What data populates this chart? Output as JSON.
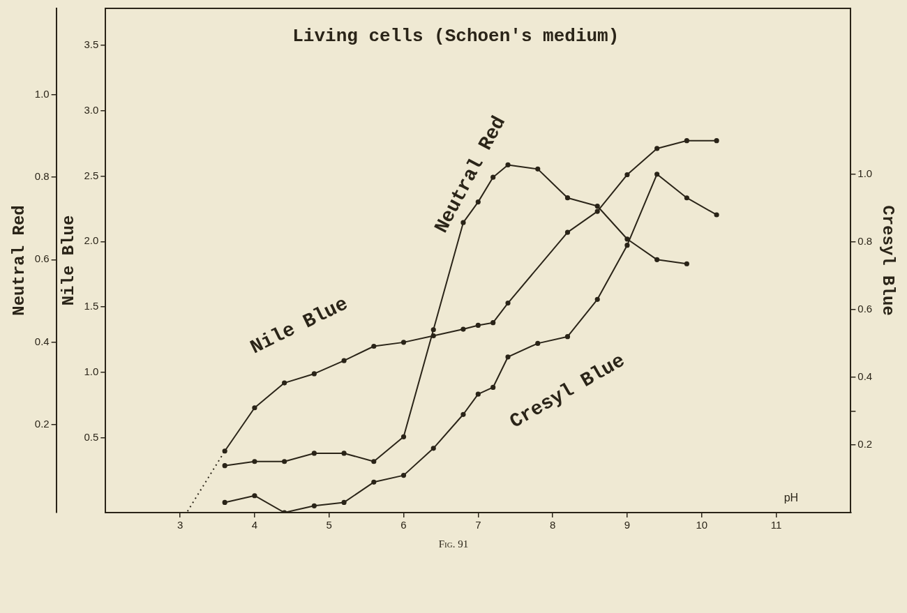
{
  "chart_data": {
    "type": "line",
    "title": "Living cells (Schoen's medium)",
    "xlabel": "pH",
    "ylabel": "Neutral Red",
    "y2label": "Nile Blue",
    "y3label": "Cresyl Blue",
    "annotations": [
      "Fig. 91"
    ],
    "xlim": [
      2,
      12
    ],
    "xticks": [
      3,
      4,
      5,
      6,
      7,
      8,
      9,
      10,
      11
    ],
    "ylim": [
      -0.014,
      1.21
    ],
    "yticks": [
      0.2,
      0.4,
      0.6,
      0.8,
      {
        "value": 1,
        "label": "1.0"
      }
    ],
    "y2lim": [
      -0.07,
      3.78
    ],
    "y2ticks": [
      0.5,
      {
        "value": 1,
        "label": "1.0"
      },
      1.5,
      {
        "value": 2,
        "label": "2.0"
      },
      2.5,
      {
        "value": 3,
        "label": "3.0"
      },
      3.5
    ],
    "y3lim": [
      0,
      1.49
    ],
    "y3ticks": [
      0.2,
      {
        "value": 0.3,
        "label": null
      },
      0.4,
      0.6,
      0.8,
      {
        "value": 1,
        "label": "1.0"
      }
    ],
    "grid": false,
    "legend": false,
    "marker": "circle",
    "line_style": "solid",
    "series": [
      {
        "name": "Nile Blue",
        "color": "#2a2418",
        "axis": "y2",
        "x": [
          3.6,
          4,
          4.4,
          4.8,
          5.2,
          5.6,
          6,
          6.4,
          6.8,
          7,
          7.2,
          7.4,
          8.2,
          8.6,
          9,
          9.4,
          9.8,
          10.2
        ],
        "values": [
          0.4,
          0.73,
          0.92,
          0.99,
          1.09,
          1.2,
          1.23,
          1.28,
          1.33,
          1.36,
          1.38,
          1.53,
          2.07,
          2.23,
          2.51,
          2.71,
          2.77,
          2.77
        ]
      },
      {
        "name": "Neutral Red",
        "color": "#2a2418",
        "axis": "y",
        "x": [
          3.6,
          4,
          4.4,
          4.8,
          5.2,
          5.6,
          6,
          6.4,
          6.8,
          7,
          7.2,
          7.4,
          7.8,
          8.2,
          8.6,
          9,
          9.4,
          9.8
        ],
        "values": [
          0.1,
          0.11,
          0.11,
          0.13,
          0.13,
          0.11,
          0.17,
          0.43,
          0.69,
          0.74,
          0.8,
          0.83,
          0.82,
          0.75,
          0.73,
          0.65,
          0.6,
          0.59
        ]
      },
      {
        "name": "Cresyl Blue",
        "color": "#2a2418",
        "axis": "y3",
        "x": [
          3.6,
          4,
          4.4,
          4.8,
          5.2,
          5.6,
          6,
          6.4,
          6.8,
          7,
          7.2,
          7.4,
          7.8,
          8.2,
          8.6,
          9,
          9.4,
          9.8,
          10.2
        ],
        "values": [
          0.03,
          0.05,
          0,
          0.02,
          0.03,
          0.09,
          0.11,
          0.19,
          0.29,
          0.35,
          0.37,
          0.46,
          0.5,
          0.52,
          0.63,
          0.79,
          1,
          0.93,
          0.88
        ]
      },
      {
        "color": "#2a2418",
        "axis": "y2",
        "line_style": "dotted",
        "marker": "none",
        "x": [
          3.1,
          3.6
        ],
        "values": [
          -0.06,
          0.4
        ]
      }
    ]
  }
}
